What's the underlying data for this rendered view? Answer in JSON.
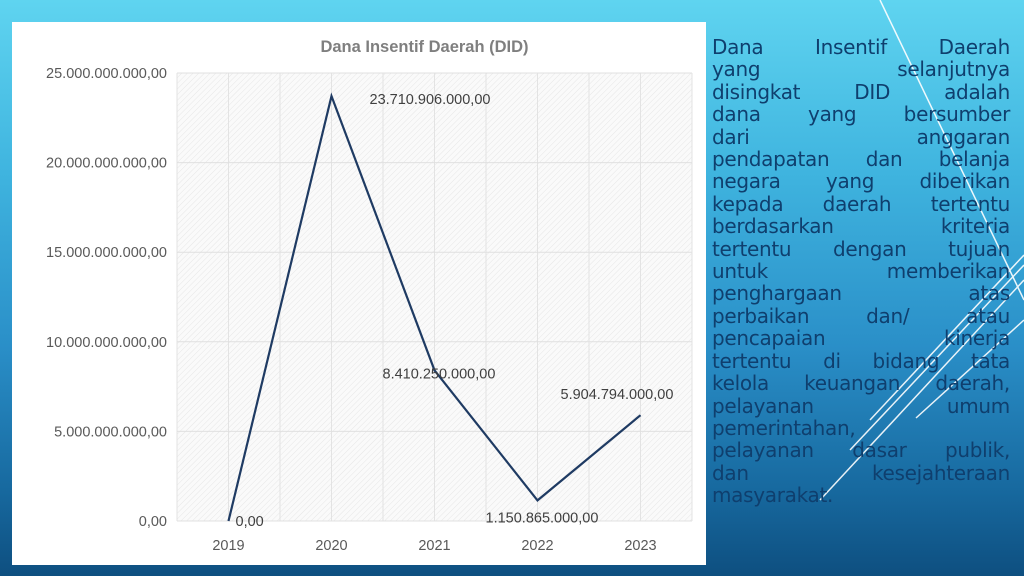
{
  "colors": {
    "line": "#1f3b63",
    "title": "#7f7f7f",
    "axis_text": "#595959",
    "body_text": "#0f3f6e"
  },
  "chart_data": {
    "type": "line",
    "title": "Dana Insentif Daerah (DID)",
    "categories": [
      "2019",
      "2020",
      "2021",
      "2022",
      "2023"
    ],
    "series": [
      {
        "name": "Dana Insentif Daerah (DID)",
        "values": [
          0,
          23710906000,
          8410250000,
          1150865000,
          5904794000
        ]
      }
    ],
    "data_labels": [
      "0,00",
      "23.710.906.000,00",
      "8.410.250.000,00",
      "1.150.865.000,00",
      "5.904.794.000,00"
    ],
    "y_ticks": [
      0,
      5000000000,
      10000000000,
      15000000000,
      20000000000,
      25000000000
    ],
    "y_tick_labels": [
      "0,00",
      "5.000.000.000,00",
      "10.000.000.000,00",
      "15.000.000.000,00",
      "20.000.000.000,00",
      "25.000.000.000,00"
    ],
    "ylim": [
      0,
      25000000000
    ],
    "xlabel": "",
    "ylabel": "",
    "grid": true,
    "legend": "none"
  },
  "description": {
    "lines": [
      "Dana Insentif Daerah",
      "yang selanjutnya",
      "disingkat DID adalah",
      "dana yang bersumber",
      "dari anggaran",
      "pendapatan dan belanja",
      "negara yang diberikan",
      "kepada daerah tertentu",
      "berdasarkan kriteria",
      "tertentu dengan tujuan",
      "untuk memberikan",
      "penghargaan atas",
      "perbaikan dan/ atau",
      "pencapaian kinerja",
      "tertentu di bidang tata",
      "kelola keuangan daerah,",
      "pelayanan umum",
      "pemerintahan,",
      "pelayanan dasar publik,",
      "dan kesejahteraan",
      "masyarakat."
    ],
    "unjustified": [
      17,
      20
    ]
  }
}
